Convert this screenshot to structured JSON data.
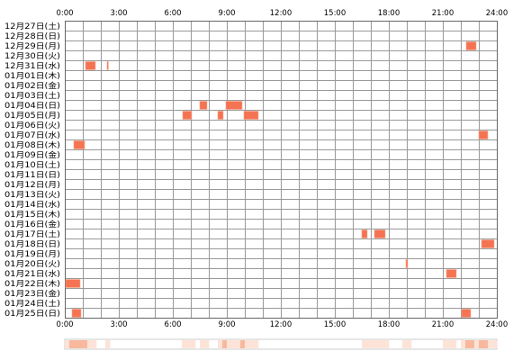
{
  "chart_data": {
    "type": "heatmap",
    "title": "",
    "xlabel": "",
    "ylabel": "",
    "x_range_hours": [
      0,
      24
    ],
    "x_tick_labels": [
      "0:00",
      "3:00",
      "6:00",
      "9:00",
      "12:00",
      "15:00",
      "18:00",
      "21:00",
      "24:00"
    ],
    "x_tick_hours": [
      0,
      3,
      6,
      9,
      12,
      15,
      18,
      21,
      24
    ],
    "grid": true,
    "grid_step_hours": 1,
    "rows": [
      "12月27日(土)",
      "12月28日(日)",
      "12月29日(月)",
      "12月30日(火)",
      "12月31日(水)",
      "01月01日(木)",
      "01月02日(金)",
      "01月03日(土)",
      "01月04日(日)",
      "01月05日(月)",
      "01月06日(火)",
      "01月07日(水)",
      "01月08日(木)",
      "01月09日(金)",
      "01月10日(土)",
      "01月11日(日)",
      "01月12日(月)",
      "01月13日(火)",
      "01月14日(水)",
      "01月15日(木)",
      "01月16日(金)",
      "01月17日(土)",
      "01月18日(日)",
      "01月19日(月)",
      "01月20日(火)",
      "01月21日(水)",
      "01月22日(木)",
      "01月23日(金)",
      "01月24日(土)",
      "01月25日(日)"
    ],
    "segments": [
      {
        "row": 2,
        "start": 22.3,
        "end": 22.85
      },
      {
        "row": 4,
        "start": 1.15,
        "end": 1.7
      },
      {
        "row": 4,
        "start": 2.35,
        "end": 2.42
      },
      {
        "row": 8,
        "start": 7.5,
        "end": 7.9
      },
      {
        "row": 8,
        "start": 8.95,
        "end": 9.85
      },
      {
        "row": 9,
        "start": 6.55,
        "end": 7.05
      },
      {
        "row": 9,
        "start": 8.5,
        "end": 8.8
      },
      {
        "row": 9,
        "start": 9.95,
        "end": 10.75
      },
      {
        "row": 11,
        "start": 23.0,
        "end": 23.5
      },
      {
        "row": 12,
        "start": 0.5,
        "end": 1.1
      },
      {
        "row": 21,
        "start": 16.5,
        "end": 16.8
      },
      {
        "row": 21,
        "start": 17.2,
        "end": 17.8
      },
      {
        "row": 22,
        "start": 23.15,
        "end": 23.85
      },
      {
        "row": 24,
        "start": 18.95,
        "end": 19.05
      },
      {
        "row": 25,
        "start": 21.2,
        "end": 21.75
      },
      {
        "row": 26,
        "start": 0.05,
        "end": 0.85
      },
      {
        "row": 29,
        "start": 0.4,
        "end": 0.9
      },
      {
        "row": 29,
        "start": 22.05,
        "end": 22.55
      }
    ],
    "colors": {
      "segment_fill": "#f47353",
      "segment_stroke": "#f9a88c",
      "grid": "#999999",
      "border": "#666666",
      "text": "#000000",
      "summary_base": "#ffffff",
      "summary_intense": "#f8b89e",
      "summary_light": "#fde3d7",
      "summary_border": "#cccccc"
    }
  }
}
